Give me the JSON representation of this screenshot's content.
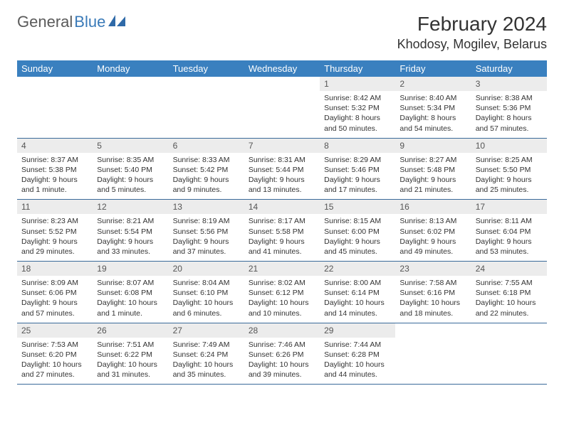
{
  "logo": {
    "word1": "General",
    "word2": "Blue"
  },
  "title": "February 2024",
  "location": "Khodosy, Mogilev, Belarus",
  "colors": {
    "header_bg": "#3a80bf",
    "header_text": "#ffffff",
    "daynum_bg": "#ececec",
    "border": "#3a6a9a",
    "logo_gray": "#5a5a5a",
    "logo_blue": "#3a7ab8",
    "body_text": "#333333"
  },
  "days_of_week": [
    "Sunday",
    "Monday",
    "Tuesday",
    "Wednesday",
    "Thursday",
    "Friday",
    "Saturday"
  ],
  "weeks": [
    [
      {
        "n": "",
        "lines": []
      },
      {
        "n": "",
        "lines": []
      },
      {
        "n": "",
        "lines": []
      },
      {
        "n": "",
        "lines": []
      },
      {
        "n": "1",
        "lines": [
          "Sunrise: 8:42 AM",
          "Sunset: 5:32 PM",
          "Daylight: 8 hours",
          "and 50 minutes."
        ]
      },
      {
        "n": "2",
        "lines": [
          "Sunrise: 8:40 AM",
          "Sunset: 5:34 PM",
          "Daylight: 8 hours",
          "and 54 minutes."
        ]
      },
      {
        "n": "3",
        "lines": [
          "Sunrise: 8:38 AM",
          "Sunset: 5:36 PM",
          "Daylight: 8 hours",
          "and 57 minutes."
        ]
      }
    ],
    [
      {
        "n": "4",
        "lines": [
          "Sunrise: 8:37 AM",
          "Sunset: 5:38 PM",
          "Daylight: 9 hours",
          "and 1 minute."
        ]
      },
      {
        "n": "5",
        "lines": [
          "Sunrise: 8:35 AM",
          "Sunset: 5:40 PM",
          "Daylight: 9 hours",
          "and 5 minutes."
        ]
      },
      {
        "n": "6",
        "lines": [
          "Sunrise: 8:33 AM",
          "Sunset: 5:42 PM",
          "Daylight: 9 hours",
          "and 9 minutes."
        ]
      },
      {
        "n": "7",
        "lines": [
          "Sunrise: 8:31 AM",
          "Sunset: 5:44 PM",
          "Daylight: 9 hours",
          "and 13 minutes."
        ]
      },
      {
        "n": "8",
        "lines": [
          "Sunrise: 8:29 AM",
          "Sunset: 5:46 PM",
          "Daylight: 9 hours",
          "and 17 minutes."
        ]
      },
      {
        "n": "9",
        "lines": [
          "Sunrise: 8:27 AM",
          "Sunset: 5:48 PM",
          "Daylight: 9 hours",
          "and 21 minutes."
        ]
      },
      {
        "n": "10",
        "lines": [
          "Sunrise: 8:25 AM",
          "Sunset: 5:50 PM",
          "Daylight: 9 hours",
          "and 25 minutes."
        ]
      }
    ],
    [
      {
        "n": "11",
        "lines": [
          "Sunrise: 8:23 AM",
          "Sunset: 5:52 PM",
          "Daylight: 9 hours",
          "and 29 minutes."
        ]
      },
      {
        "n": "12",
        "lines": [
          "Sunrise: 8:21 AM",
          "Sunset: 5:54 PM",
          "Daylight: 9 hours",
          "and 33 minutes."
        ]
      },
      {
        "n": "13",
        "lines": [
          "Sunrise: 8:19 AM",
          "Sunset: 5:56 PM",
          "Daylight: 9 hours",
          "and 37 minutes."
        ]
      },
      {
        "n": "14",
        "lines": [
          "Sunrise: 8:17 AM",
          "Sunset: 5:58 PM",
          "Daylight: 9 hours",
          "and 41 minutes."
        ]
      },
      {
        "n": "15",
        "lines": [
          "Sunrise: 8:15 AM",
          "Sunset: 6:00 PM",
          "Daylight: 9 hours",
          "and 45 minutes."
        ]
      },
      {
        "n": "16",
        "lines": [
          "Sunrise: 8:13 AM",
          "Sunset: 6:02 PM",
          "Daylight: 9 hours",
          "and 49 minutes."
        ]
      },
      {
        "n": "17",
        "lines": [
          "Sunrise: 8:11 AM",
          "Sunset: 6:04 PM",
          "Daylight: 9 hours",
          "and 53 minutes."
        ]
      }
    ],
    [
      {
        "n": "18",
        "lines": [
          "Sunrise: 8:09 AM",
          "Sunset: 6:06 PM",
          "Daylight: 9 hours",
          "and 57 minutes."
        ]
      },
      {
        "n": "19",
        "lines": [
          "Sunrise: 8:07 AM",
          "Sunset: 6:08 PM",
          "Daylight: 10 hours",
          "and 1 minute."
        ]
      },
      {
        "n": "20",
        "lines": [
          "Sunrise: 8:04 AM",
          "Sunset: 6:10 PM",
          "Daylight: 10 hours",
          "and 6 minutes."
        ]
      },
      {
        "n": "21",
        "lines": [
          "Sunrise: 8:02 AM",
          "Sunset: 6:12 PM",
          "Daylight: 10 hours",
          "and 10 minutes."
        ]
      },
      {
        "n": "22",
        "lines": [
          "Sunrise: 8:00 AM",
          "Sunset: 6:14 PM",
          "Daylight: 10 hours",
          "and 14 minutes."
        ]
      },
      {
        "n": "23",
        "lines": [
          "Sunrise: 7:58 AM",
          "Sunset: 6:16 PM",
          "Daylight: 10 hours",
          "and 18 minutes."
        ]
      },
      {
        "n": "24",
        "lines": [
          "Sunrise: 7:55 AM",
          "Sunset: 6:18 PM",
          "Daylight: 10 hours",
          "and 22 minutes."
        ]
      }
    ],
    [
      {
        "n": "25",
        "lines": [
          "Sunrise: 7:53 AM",
          "Sunset: 6:20 PM",
          "Daylight: 10 hours",
          "and 27 minutes."
        ]
      },
      {
        "n": "26",
        "lines": [
          "Sunrise: 7:51 AM",
          "Sunset: 6:22 PM",
          "Daylight: 10 hours",
          "and 31 minutes."
        ]
      },
      {
        "n": "27",
        "lines": [
          "Sunrise: 7:49 AM",
          "Sunset: 6:24 PM",
          "Daylight: 10 hours",
          "and 35 minutes."
        ]
      },
      {
        "n": "28",
        "lines": [
          "Sunrise: 7:46 AM",
          "Sunset: 6:26 PM",
          "Daylight: 10 hours",
          "and 39 minutes."
        ]
      },
      {
        "n": "29",
        "lines": [
          "Sunrise: 7:44 AM",
          "Sunset: 6:28 PM",
          "Daylight: 10 hours",
          "and 44 minutes."
        ]
      },
      {
        "n": "",
        "lines": []
      },
      {
        "n": "",
        "lines": []
      }
    ]
  ]
}
